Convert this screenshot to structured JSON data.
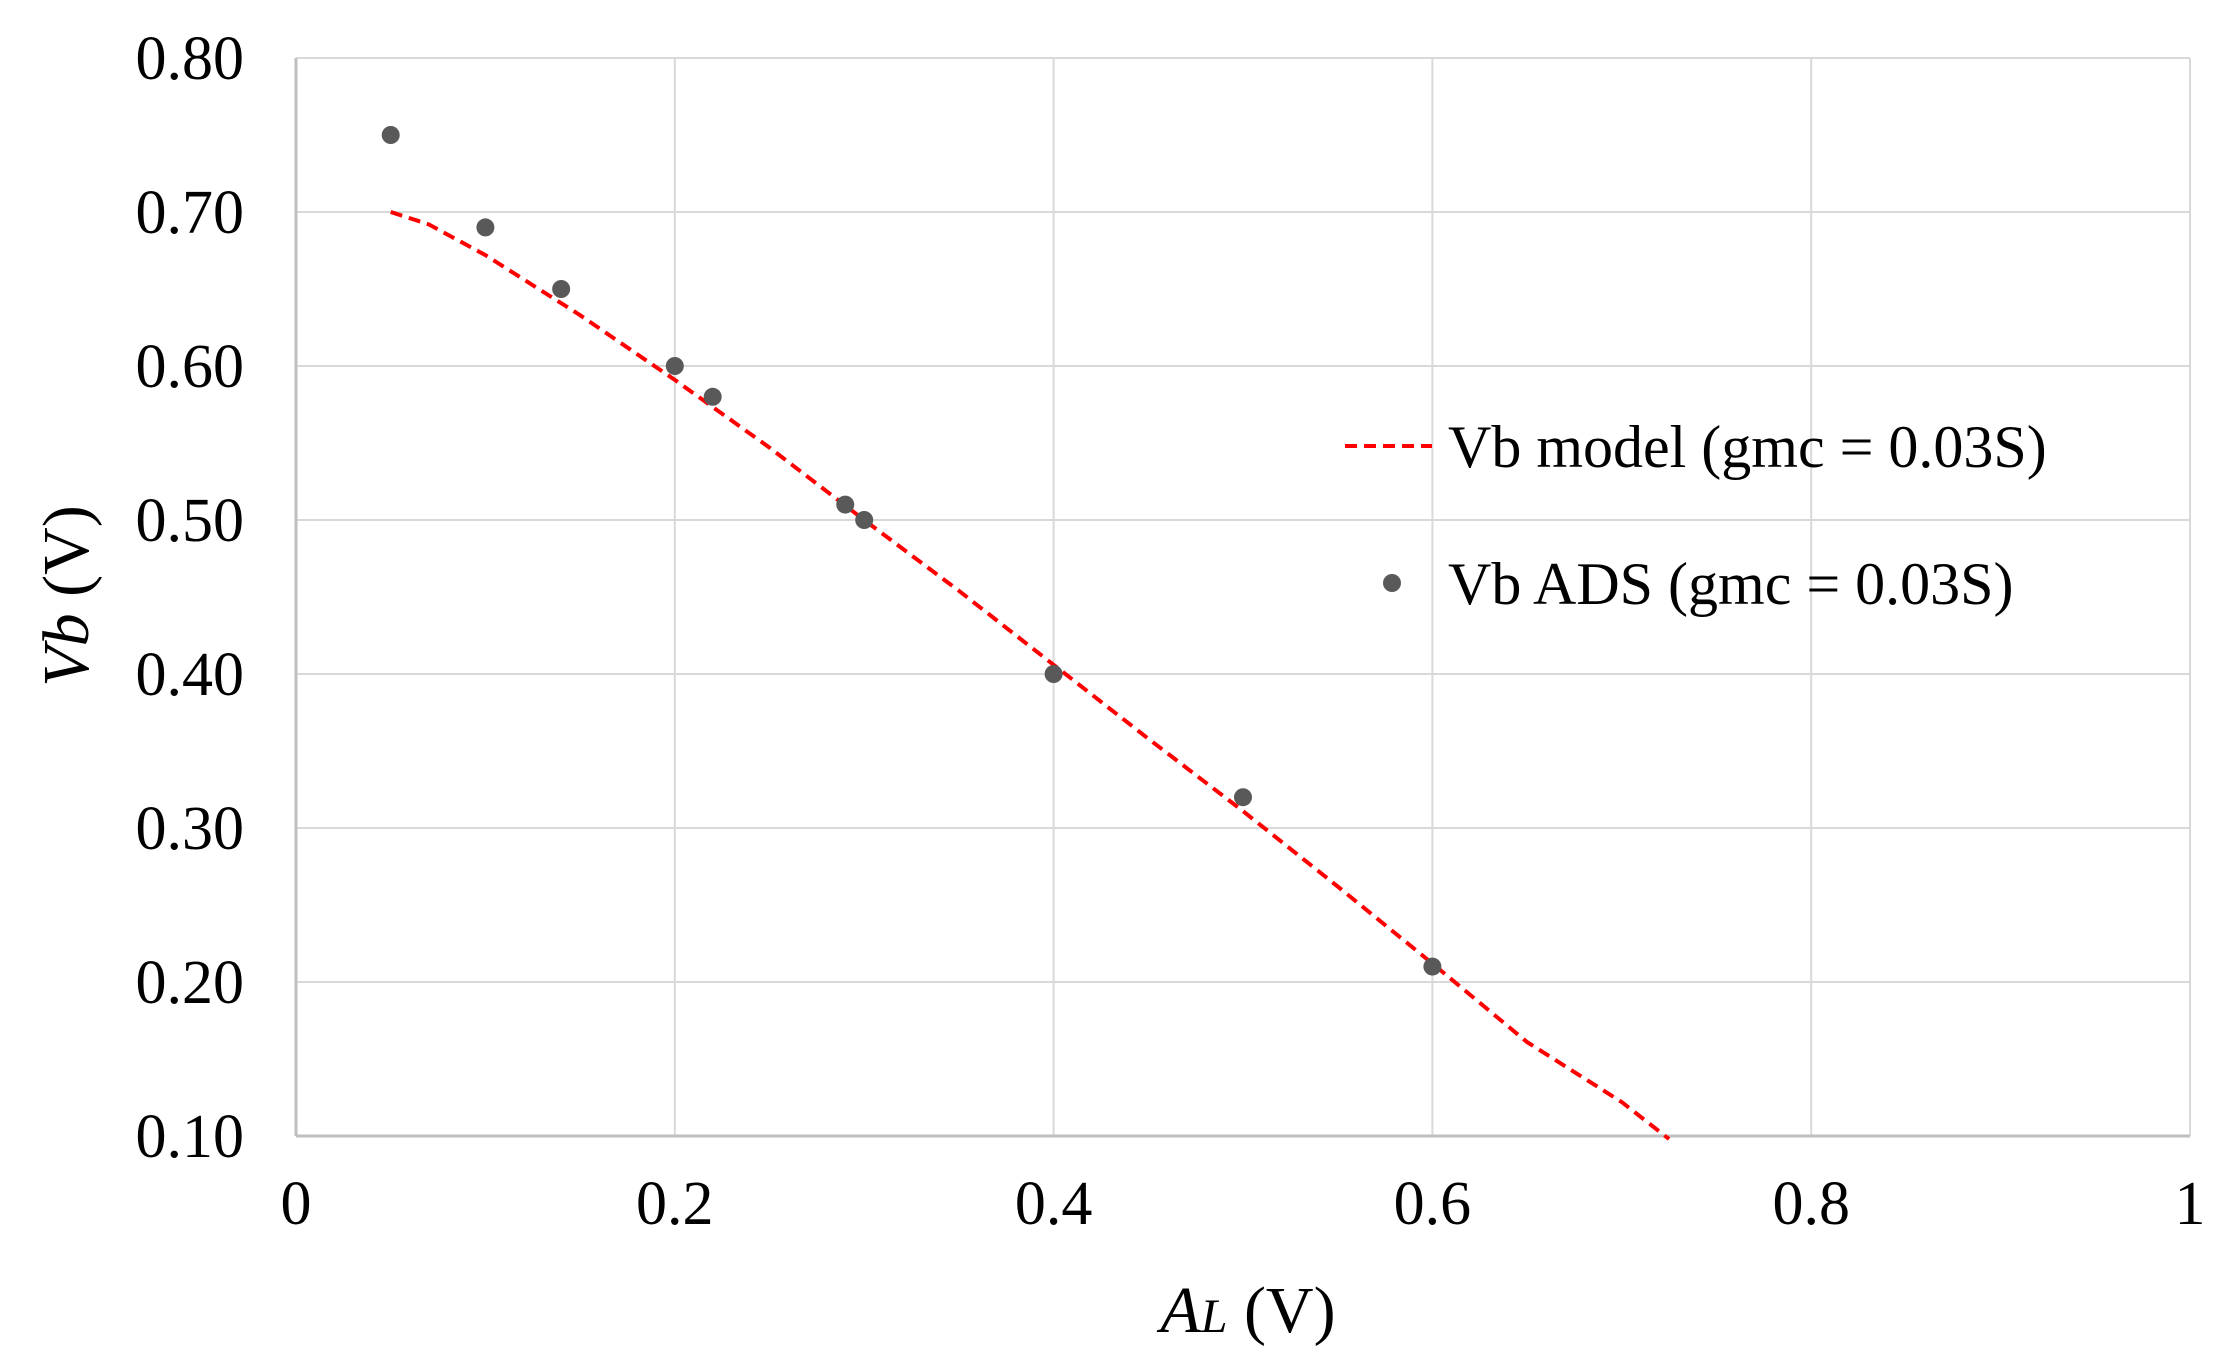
{
  "chart_data": {
    "type": "scatter",
    "title": "",
    "xlabel": {
      "var": "A",
      "sub": "L",
      "unit": " (V)"
    },
    "ylabel": {
      "var": "Vb",
      "unit": " (V)"
    },
    "xlim": [
      0,
      1
    ],
    "ylim": [
      0.1,
      0.8
    ],
    "grid": true,
    "legend_position": "right-upper",
    "x_ticks": [
      {
        "value": 0,
        "label": "0"
      },
      {
        "value": 0.2,
        "label": "0.2"
      },
      {
        "value": 0.4,
        "label": "0.4"
      },
      {
        "value": 0.6,
        "label": "0.6"
      },
      {
        "value": 0.8,
        "label": "0.8"
      },
      {
        "value": 1,
        "label": "1"
      }
    ],
    "y_ticks": [
      {
        "value": 0.1,
        "label": "0.10"
      },
      {
        "value": 0.2,
        "label": "0.20"
      },
      {
        "value": 0.3,
        "label": "0.30"
      },
      {
        "value": 0.4,
        "label": "0.40"
      },
      {
        "value": 0.5,
        "label": "0.50"
      },
      {
        "value": 0.6,
        "label": "0.60"
      },
      {
        "value": 0.7,
        "label": "0.70"
      },
      {
        "value": 0.8,
        "label": "0.80"
      }
    ],
    "series": [
      {
        "name": "Vb model (gmc = 0.03S)",
        "kind": "line",
        "style": "dashed",
        "color": "#ff0000",
        "x": [
          0.05,
          0.07,
          0.1,
          0.15,
          0.2,
          0.25,
          0.3,
          0.35,
          0.4,
          0.45,
          0.5,
          0.55,
          0.6,
          0.65,
          0.7,
          0.725
        ],
        "y": [
          0.7,
          0.692,
          0.672,
          0.633,
          0.591,
          0.547,
          0.5,
          0.454,
          0.406,
          0.358,
          0.311,
          0.262,
          0.212,
          0.161,
          0.122,
          0.098
        ]
      },
      {
        "name": "Vb ADS (gmc = 0.03S)",
        "kind": "scatter",
        "color": "#595959",
        "x": [
          0.05,
          0.1,
          0.14,
          0.2,
          0.22,
          0.29,
          0.3,
          0.4,
          0.5,
          0.6
        ],
        "y": [
          0.75,
          0.69,
          0.65,
          0.6,
          0.58,
          0.51,
          0.5,
          0.4,
          0.32,
          0.21
        ]
      }
    ]
  }
}
